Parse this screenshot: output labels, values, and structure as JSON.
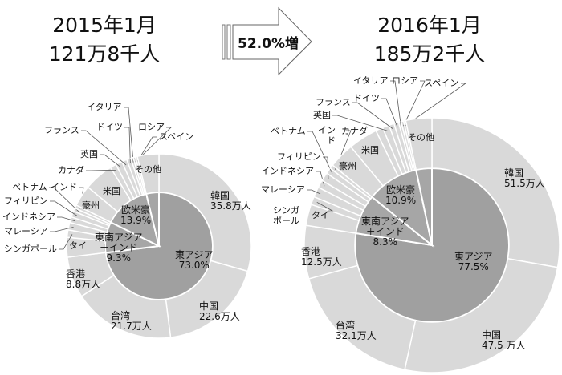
{
  "arrow": {
    "label": "52.0%増"
  },
  "chart_data": [
    {
      "type": "pie",
      "title": "2015年1月",
      "subtitle": "121万8千人",
      "inner": [
        {
          "name": "東アジア",
          "pct": "73.0%",
          "value": 73.0
        },
        {
          "name": "東南アジア＋インド",
          "pct": "9.3%",
          "value": 9.3
        },
        {
          "name": "欧米豪",
          "pct": "13.9%",
          "value": 13.9
        },
        {
          "name": "その他",
          "value": 3.8
        }
      ],
      "outer": [
        {
          "name": "韓国",
          "value": 35.8,
          "label": "35.8万人"
        },
        {
          "name": "中国",
          "value": 22.6,
          "label": "22.6万人"
        },
        {
          "name": "台湾",
          "value": 21.7,
          "label": "21.7万人"
        },
        {
          "name": "香港",
          "value": 8.8,
          "label": "8.8万人"
        },
        {
          "name": "タイ",
          "value": 4.2
        },
        {
          "name": "シンガポール",
          "value": 1.6
        },
        {
          "name": "マレーシア",
          "value": 1.6
        },
        {
          "name": "インドネシア",
          "value": 1.2
        },
        {
          "name": "フィリピン",
          "value": 1.3
        },
        {
          "name": "ベトナム",
          "value": 0.7
        },
        {
          "name": "インド",
          "value": 0.7
        },
        {
          "name": "豪州",
          "value": 4.5
        },
        {
          "name": "米国",
          "value": 6.3
        },
        {
          "name": "カナダ",
          "value": 1.3
        },
        {
          "name": "英国",
          "value": 1.4
        },
        {
          "name": "フランス",
          "value": 1.1
        },
        {
          "name": "ドイツ",
          "value": 0.9
        },
        {
          "name": "イタリア",
          "value": 0.5
        },
        {
          "name": "ロシア",
          "value": 0.5
        },
        {
          "name": "スペイン",
          "value": 0.4
        },
        {
          "name": "その他",
          "value": 4.6
        }
      ]
    },
    {
      "type": "pie",
      "title": "2016年1月",
      "subtitle": "185万2千人",
      "inner": [
        {
          "name": "東アジア",
          "pct": "77.5%",
          "value": 77.5
        },
        {
          "name": "東南アジア＋インド",
          "pct": "8.3%",
          "value": 8.3
        },
        {
          "name": "欧米豪",
          "pct": "10.9%",
          "value": 10.9
        },
        {
          "name": "その他",
          "value": 3.3
        }
      ],
      "outer": [
        {
          "name": "韓国",
          "value": 51.5,
          "label": "51.5万人"
        },
        {
          "name": "中国",
          "value": 47.5,
          "label": "47.5 万人"
        },
        {
          "name": "台湾",
          "value": 32.1,
          "label": "32.1万人"
        },
        {
          "name": "香港",
          "value": 12.5,
          "label": "12.5万人"
        },
        {
          "name": "タイ",
          "value": 5.0
        },
        {
          "name": "シンガポール",
          "value": 1.9
        },
        {
          "name": "マレーシア",
          "value": 2.4
        },
        {
          "name": "インドネシア",
          "value": 1.8
        },
        {
          "name": "フィリピン",
          "value": 2.0
        },
        {
          "name": "ベトナム",
          "value": 1.4
        },
        {
          "name": "インド",
          "value": 0.9
        },
        {
          "name": "豪州",
          "value": 6.0
        },
        {
          "name": "米国",
          "value": 6.9
        },
        {
          "name": "カナダ",
          "value": 1.7
        },
        {
          "name": "英国",
          "value": 1.6
        },
        {
          "name": "フランス",
          "value": 1.2
        },
        {
          "name": "ドイツ",
          "value": 1.1
        },
        {
          "name": "イタリア",
          "value": 0.6
        },
        {
          "name": "ロシア",
          "value": 0.6
        },
        {
          "name": "スペイン",
          "value": 0.5
        },
        {
          "name": "その他",
          "value": 6.1
        }
      ]
    }
  ],
  "colors": {
    "inner": "#a6a6a6",
    "inner_east_asia": "#a0a0a0",
    "outer": "#d9d9d9",
    "separator": "#ffffff",
    "leader": "#595959"
  }
}
